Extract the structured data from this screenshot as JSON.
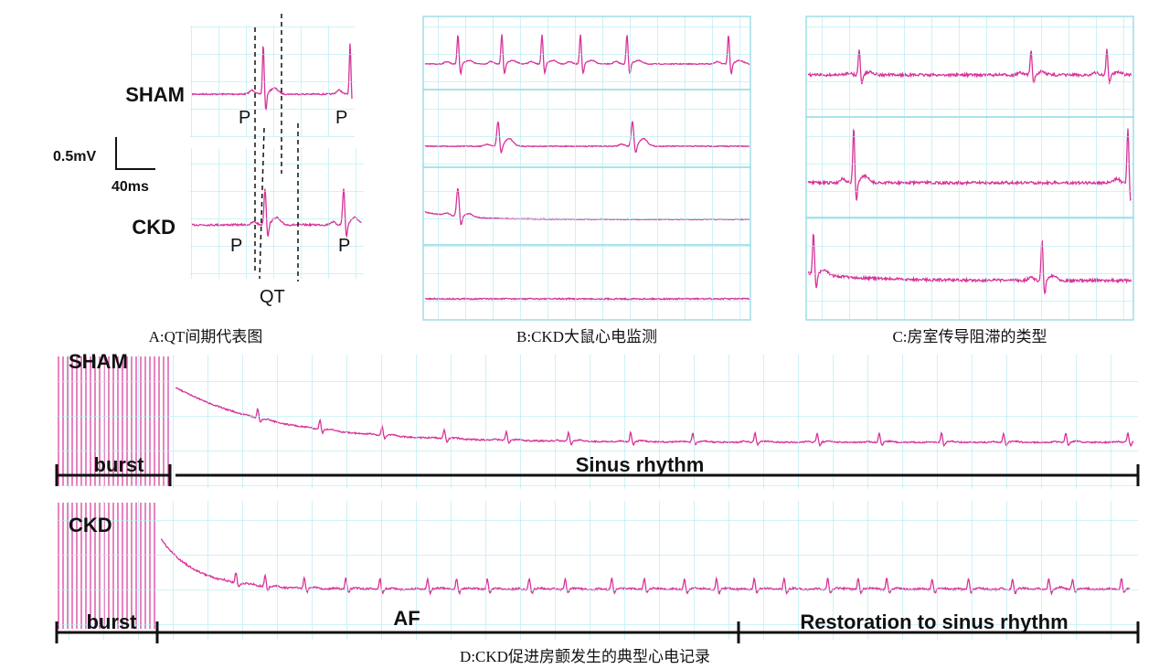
{
  "panel_a": {
    "sham": "SHAM",
    "ckd": "CKD",
    "p_labels": [
      "P",
      "P",
      "P",
      "P"
    ],
    "qt": "QT",
    "scale_voltage": "0.5mV",
    "scale_time": "40ms",
    "caption": "A:QT间期代表图"
  },
  "panel_b": {
    "caption": "B:CKD大鼠心电监测"
  },
  "panel_c": {
    "caption": "C:房室传导阻滞的类型"
  },
  "panel_d": {
    "sham": {
      "label": "SHAM",
      "burst": "burst",
      "rhythm": "Sinus rhythm"
    },
    "ckd": {
      "label": "CKD",
      "burst": "burst",
      "af": "AF",
      "restoration": "Restoration to sinus rhythm"
    },
    "caption": "D:CKD促进房颤发生的典型心电记录"
  }
}
